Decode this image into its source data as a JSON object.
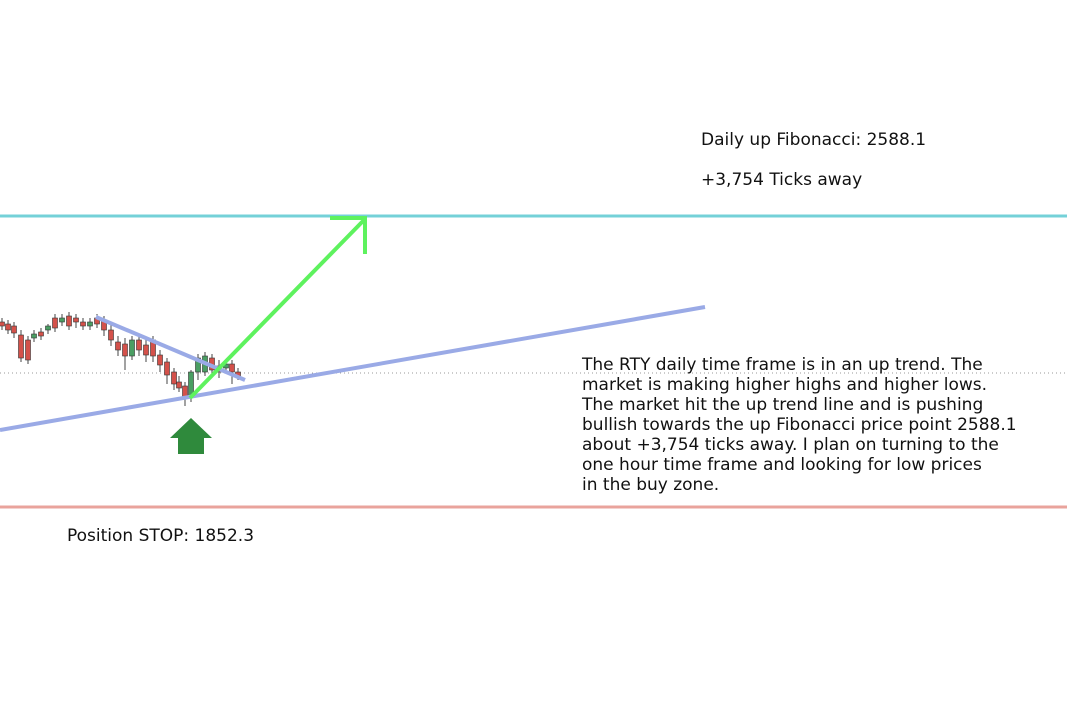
{
  "annotations": {
    "fibonacci_label": "Daily up Fibonacci: 2588.1",
    "ticks_away": "+3,754 Ticks away",
    "stop_label": "Position STOP: 1852.3",
    "analysis": [
      "The RTY daily time frame is in an up trend. The",
      "market is making higher highs and higher lows.",
      "The market hit the up trend line and is pushing",
      "bullish towards the up Fibonacci price point 2588.1",
      "about +3,754 ticks away. I plan on turning to the",
      "one hour time frame and looking for low prices",
      "in the buy zone."
    ]
  }
}
